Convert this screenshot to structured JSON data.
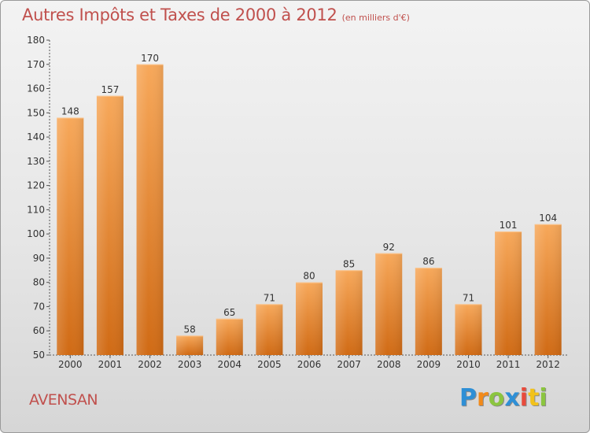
{
  "chart_data": {
    "type": "bar",
    "title": "Autres Impôts et Taxes de 2000 à 2012",
    "subtitle": "(en milliers d'€)",
    "categories": [
      "2000",
      "2001",
      "2002",
      "2003",
      "2004",
      "2005",
      "2006",
      "2007",
      "2008",
      "2009",
      "2010",
      "2011",
      "2012"
    ],
    "values": [
      148,
      157,
      170,
      58,
      65,
      71,
      80,
      85,
      92,
      86,
      71,
      101,
      104
    ],
    "ylim": [
      50,
      180
    ],
    "yticks": [
      50,
      60,
      70,
      80,
      90,
      100,
      110,
      120,
      130,
      140,
      150,
      160,
      170,
      180
    ],
    "grid": false,
    "bar_color": "#e8822a",
    "bar_color_light": "#f7a85a",
    "bar_color_dark": "#d06a14"
  },
  "commune": "AVENSAN",
  "logo": {
    "letters": [
      "P",
      "r",
      "o",
      "x",
      "i",
      "t",
      "i"
    ],
    "colors": [
      "#2e8fd6",
      "#f28a1a",
      "#8bc53f",
      "#2e8fd6",
      "#e84b3c",
      "#f2c21a",
      "#8bc53f"
    ]
  },
  "colors": {
    "title": "#c0504d",
    "text": "#333333"
  }
}
